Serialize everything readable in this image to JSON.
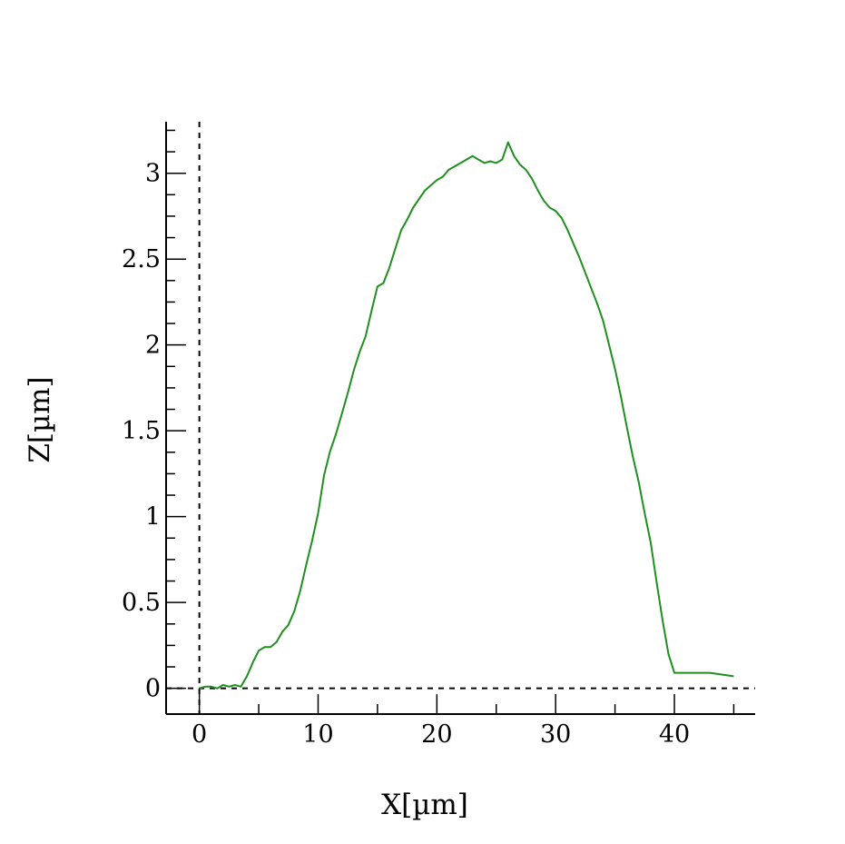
{
  "chart_data": {
    "type": "line",
    "xlabel": "X[µm]",
    "ylabel": "Z[µm]",
    "xlim": [
      -2.8,
      46.8
    ],
    "ylim": [
      -0.15,
      3.3
    ],
    "x_ticks": [
      0,
      10,
      20,
      30,
      40
    ],
    "x_tick_labels": [
      "0",
      "10",
      "20",
      "30",
      "40"
    ],
    "x_minor_step": 5,
    "y_ticks": [
      0,
      0.5,
      1,
      1.5,
      2,
      2.5,
      3
    ],
    "y_tick_labels": [
      "0",
      "0.5",
      "1",
      "1.5",
      "2",
      "2.5",
      "3"
    ],
    "y_minor_step": 0.125,
    "reference_lines": [
      {
        "axis": "x",
        "value": 0,
        "style": "dashed"
      },
      {
        "axis": "y",
        "value": 0,
        "style": "dashed"
      }
    ],
    "grid": false,
    "legend": "none",
    "series": [
      {
        "color": "#1f8f1f",
        "x": [
          0,
          0.5,
          1,
          1.5,
          2,
          2.5,
          3,
          3.5,
          4,
          4.5,
          5,
          5.5,
          6,
          6.5,
          7,
          7.5,
          8,
          8.5,
          9,
          9.5,
          10,
          10.5,
          11,
          11.5,
          12,
          12.5,
          13,
          13.5,
          14,
          14.5,
          15,
          15.5,
          16,
          16.5,
          17,
          17.5,
          18,
          18.5,
          19,
          19.5,
          20,
          20.5,
          21,
          21.5,
          22,
          22.5,
          23,
          23.5,
          24,
          24.5,
          25,
          25.5,
          26,
          26.5,
          27,
          27.5,
          28,
          28.5,
          29,
          29.5,
          30,
          30.5,
          31,
          31.5,
          32,
          32.5,
          33,
          33.5,
          34,
          34.5,
          35,
          35.5,
          36,
          36.5,
          37,
          37.5,
          38,
          38.5,
          39,
          39.5,
          40,
          41,
          42,
          43,
          44,
          45
        ],
        "y": [
          0.0,
          0.01,
          0.01,
          0.0,
          0.02,
          0.01,
          0.02,
          0.01,
          0.07,
          0.15,
          0.22,
          0.24,
          0.24,
          0.27,
          0.33,
          0.37,
          0.45,
          0.57,
          0.72,
          0.86,
          1.02,
          1.24,
          1.38,
          1.48,
          1.6,
          1.72,
          1.85,
          1.96,
          2.05,
          2.2,
          2.34,
          2.36,
          2.45,
          2.56,
          2.67,
          2.73,
          2.8,
          2.85,
          2.9,
          2.93,
          2.96,
          2.98,
          3.02,
          3.04,
          3.06,
          3.08,
          3.1,
          3.08,
          3.06,
          3.07,
          3.06,
          3.08,
          3.18,
          3.1,
          3.05,
          3.02,
          2.97,
          2.9,
          2.84,
          2.8,
          2.78,
          2.74,
          2.67,
          2.59,
          2.51,
          2.42,
          2.33,
          2.24,
          2.14,
          2.0,
          1.86,
          1.7,
          1.52,
          1.35,
          1.2,
          1.02,
          0.85,
          0.62,
          0.4,
          0.2,
          0.09,
          0.09,
          0.09,
          0.09,
          0.08,
          0.07
        ]
      }
    ]
  }
}
